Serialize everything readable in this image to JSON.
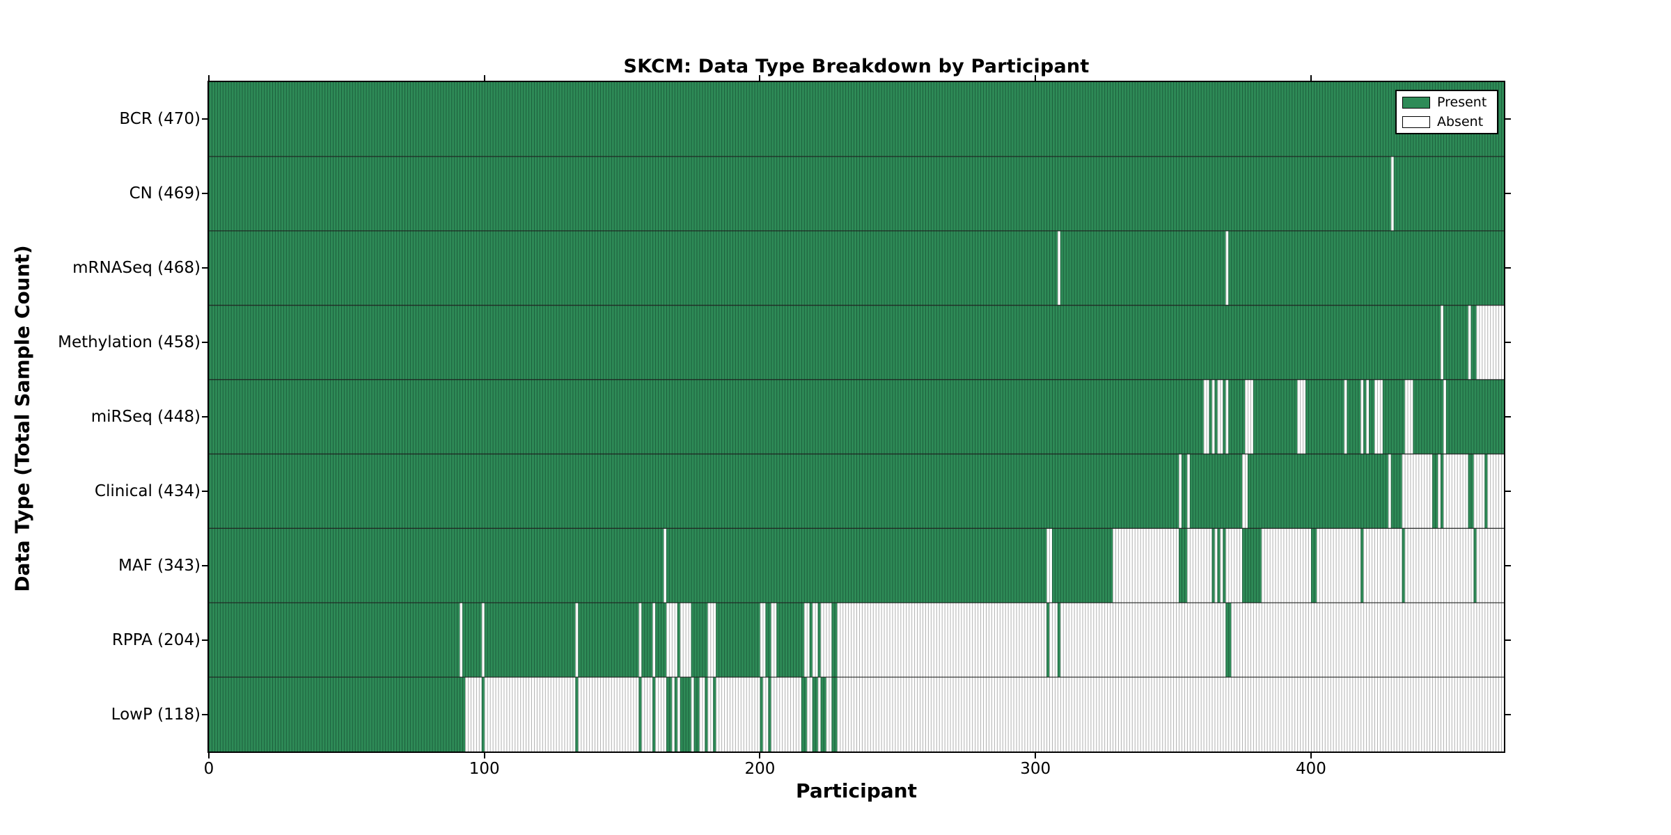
{
  "chart_data": {
    "type": "heatmap",
    "title": "SKCM: Data Type Breakdown by Participant",
    "xlabel": "Participant",
    "ylabel": "Data Type (Total Sample Count)",
    "x_ticks": [
      0,
      100,
      200,
      300,
      400
    ],
    "n_participants": 470,
    "grid": false,
    "legend_position": "upper right",
    "colors": {
      "present": "#2e8b57",
      "present_stripe": "#1c5f3c",
      "absent": "#ffffff",
      "absent_stripe": "#b0b0b0",
      "row_divider": "#1b1b1b",
      "axis": "#000000"
    },
    "legend": {
      "entries": [
        {
          "label": "Present",
          "color": "#2e8b57"
        },
        {
          "label": "Absent",
          "color": "#ffffff"
        }
      ]
    },
    "rows": [
      {
        "data_type": "BCR",
        "present_count": 470,
        "label": "BCR (470)",
        "absent_ranges": []
      },
      {
        "data_type": "CN",
        "present_count": 469,
        "label": "CN (469)",
        "absent_ranges": [
          [
            429,
            429
          ]
        ]
      },
      {
        "data_type": "mRNASeq",
        "present_count": 468,
        "label": "mRNASeq (468)",
        "absent_ranges": [
          [
            308,
            308
          ],
          [
            369,
            369
          ]
        ]
      },
      {
        "data_type": "Methylation",
        "present_count": 458,
        "label": "Methylation (458)",
        "absent_ranges": [
          [
            447,
            447
          ],
          [
            457,
            457
          ],
          [
            460,
            469
          ]
        ]
      },
      {
        "data_type": "miRSeq",
        "present_count": 448,
        "label": "miRSeq (448)",
        "absent_ranges": [
          [
            361,
            362
          ],
          [
            364,
            364
          ],
          [
            366,
            367
          ],
          [
            369,
            369
          ],
          [
            376,
            378
          ],
          [
            395,
            397
          ],
          [
            412,
            412
          ],
          [
            418,
            418
          ],
          [
            420,
            420
          ],
          [
            423,
            425
          ],
          [
            434,
            436
          ],
          [
            448,
            448
          ]
        ]
      },
      {
        "data_type": "Clinical",
        "present_count": 434,
        "label": "Clinical (434)",
        "absent_ranges": [
          [
            352,
            352
          ],
          [
            355,
            355
          ],
          [
            375,
            376
          ],
          [
            428,
            428
          ],
          [
            433,
            443
          ],
          [
            446,
            446
          ],
          [
            448,
            456
          ],
          [
            459,
            462
          ],
          [
            464,
            469
          ]
        ]
      },
      {
        "data_type": "MAF",
        "present_count": 343,
        "label": "MAF (343)",
        "absent_ranges": [
          [
            165,
            165
          ],
          [
            304,
            305
          ],
          [
            328,
            351
          ],
          [
            355,
            363
          ],
          [
            365,
            365
          ],
          [
            367,
            367
          ],
          [
            369,
            374
          ],
          [
            382,
            399
          ],
          [
            402,
            417
          ],
          [
            419,
            432
          ],
          [
            434,
            458
          ],
          [
            460,
            469
          ]
        ]
      },
      {
        "data_type": "RPPA",
        "present_count": 204,
        "label": "RPPA (204)",
        "absent_ranges": [
          [
            91,
            91
          ],
          [
            99,
            99
          ],
          [
            133,
            133
          ],
          [
            156,
            156
          ],
          [
            161,
            161
          ],
          [
            166,
            169
          ],
          [
            171,
            174
          ],
          [
            181,
            183
          ],
          [
            200,
            201
          ],
          [
            204,
            205
          ],
          [
            216,
            217
          ],
          [
            219,
            220
          ],
          [
            222,
            225
          ],
          [
            228,
            303
          ],
          [
            305,
            307
          ],
          [
            309,
            368
          ],
          [
            371,
            469
          ]
        ]
      },
      {
        "data_type": "LowP",
        "present_count": 118,
        "label": "LowP (118)",
        "absent_ranges": [
          [
            93,
            98
          ],
          [
            100,
            132
          ],
          [
            134,
            155
          ],
          [
            157,
            160
          ],
          [
            162,
            165
          ],
          [
            168,
            168
          ],
          [
            170,
            170
          ],
          [
            175,
            175
          ],
          [
            178,
            179
          ],
          [
            181,
            182
          ],
          [
            184,
            199
          ],
          [
            201,
            202
          ],
          [
            204,
            214
          ],
          [
            217,
            218
          ],
          [
            221,
            221
          ],
          [
            224,
            225
          ],
          [
            228,
            469
          ]
        ]
      }
    ]
  }
}
